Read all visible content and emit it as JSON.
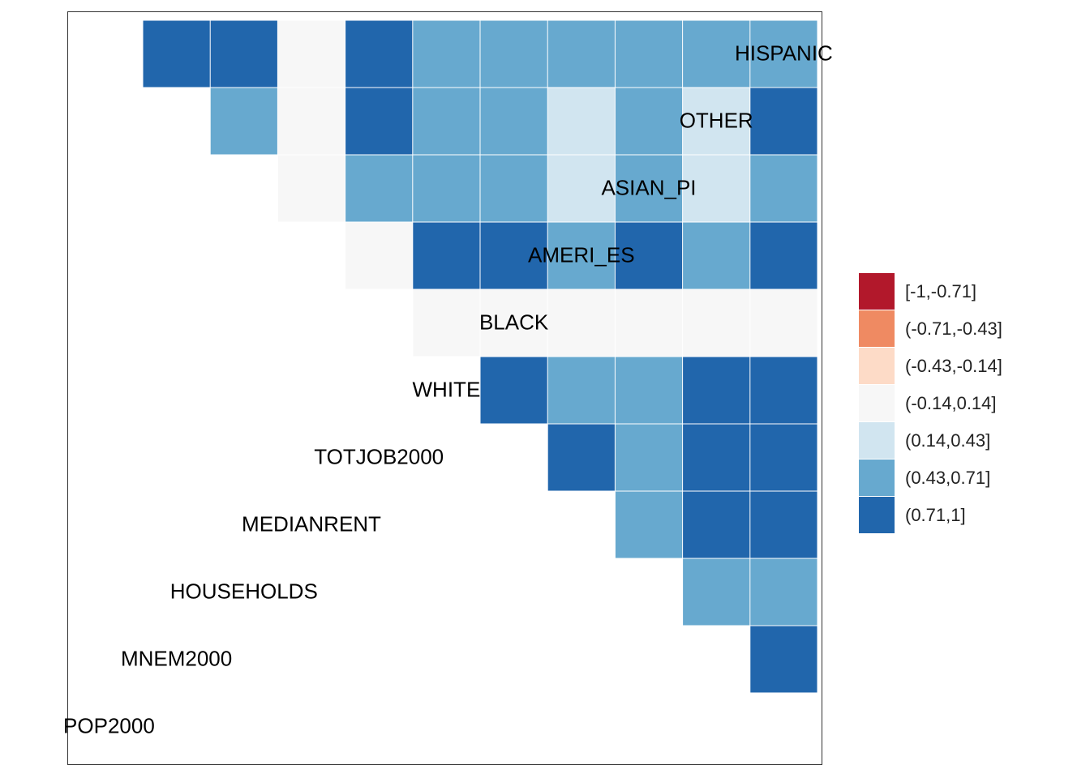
{
  "chart_data": {
    "type": "heatmap",
    "variables": [
      "POP2000",
      "MNEM2000",
      "HOUSEHOLDS",
      "MEDIANRENT",
      "TOTJOB2000",
      "WHITE",
      "BLACK",
      "AMERI_ES",
      "ASIAN_PI",
      "OTHER",
      "HISPANIC"
    ],
    "legend": {
      "bins": [
        "[-1,-0.71]",
        "(-0.71,-0.43]",
        "(-0.43,-0.14]",
        "(-0.14,0.14]",
        "(0.14,0.43]",
        "(0.43,0.71]",
        "(0.71,1]"
      ],
      "colors": [
        "#B2182B",
        "#EF8A62",
        "#FDDBC7",
        "#F7F7F7",
        "#D1E5F0",
        "#67A9CF",
        "#2166AC"
      ]
    },
    "cells_bin_index_by_row": [
      [],
      [
        6
      ],
      [
        5,
        5
      ],
      [
        6,
        6,
        5
      ],
      [
        6,
        6,
        5,
        6
      ],
      [
        6,
        6,
        5,
        5,
        6
      ],
      [
        3,
        3,
        3,
        3,
        3,
        3
      ],
      [
        6,
        5,
        6,
        5,
        6,
        6,
        3
      ],
      [
        5,
        4,
        5,
        4,
        5,
        5,
        5,
        3
      ],
      [
        6,
        4,
        5,
        4,
        5,
        5,
        6,
        3,
        5
      ],
      [
        5,
        5,
        5,
        5,
        5,
        5,
        6,
        3,
        6,
        6
      ]
    ]
  }
}
